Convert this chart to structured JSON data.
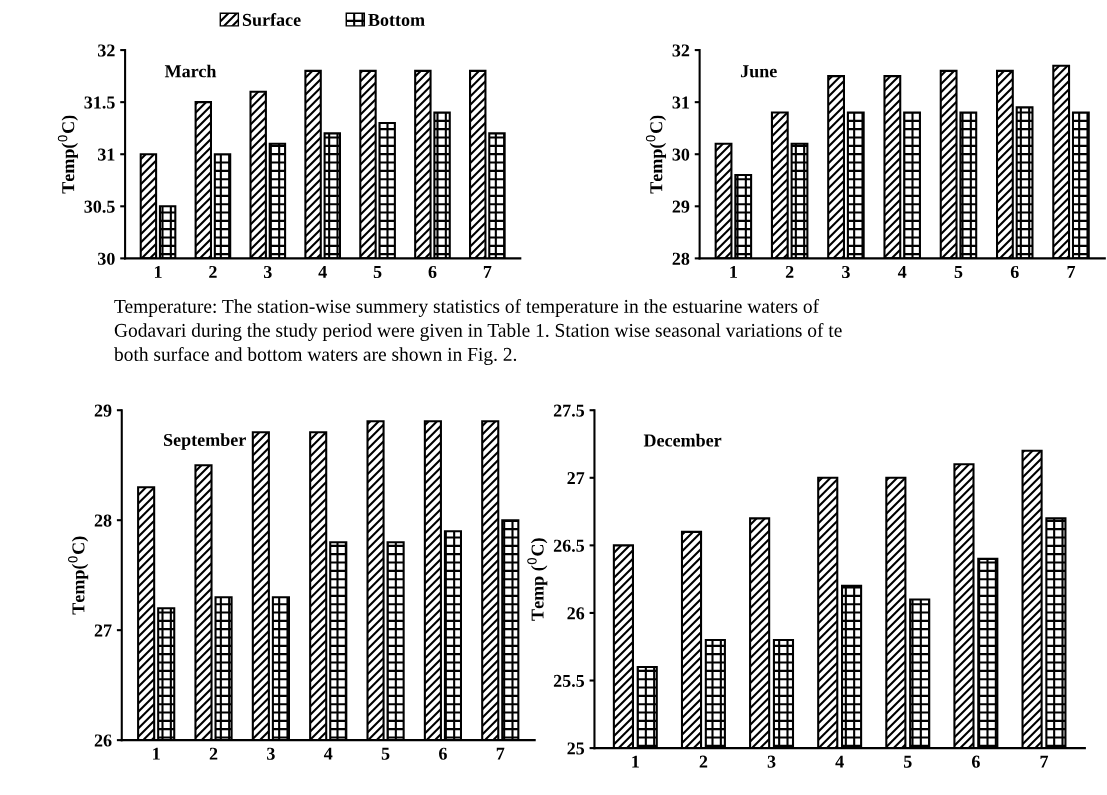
{
  "chart_data": [
    {
      "type": "bar",
      "title": "March",
      "ylabel": "Temp($^{0}$C)",
      "categories": [
        "1",
        "2",
        "3",
        "4",
        "5",
        "6",
        "7"
      ],
      "ylim": [
        30,
        32
      ],
      "yticks": [
        30,
        30.5,
        31,
        31.5,
        32
      ],
      "legend": "top",
      "grid": false,
      "series": [
        {
          "name": "Surface",
          "color": "#000000",
          "values": [
            31,
            31.5,
            31.6,
            31.8,
            31.8,
            31.8,
            31.8
          ]
        },
        {
          "name": "Bottom",
          "color": "#000000",
          "values": [
            30.5,
            31,
            31.1,
            31.2,
            31.3,
            31.4,
            31.2
          ]
        }
      ]
    },
    {
      "type": "bar",
      "title": "June",
      "ylabel": "Temp($^{0}$C)",
      "categories": [
        "1",
        "2",
        "3",
        "4",
        "5",
        "6",
        "7"
      ],
      "ylim": [
        28,
        32
      ],
      "yticks": [
        28,
        29,
        30,
        31,
        32
      ],
      "grid": false,
      "series": [
        {
          "color": "#000000",
          "values": [
            30.2,
            30.8,
            31.5,
            31.5,
            31.6,
            31.6,
            31.7
          ]
        },
        {
          "color": "#000000",
          "values": [
            29.6,
            30.2,
            30.8,
            30.8,
            30.8,
            30.9,
            30.8
          ]
        }
      ]
    },
    {
      "type": "other",
      "annotations": [
        "Temperature: The station-wise summery statistics of temperature in the estuarine waters of",
        "Godavari during the study period were given in Table 1. Station wise seasonal variations of te",
        "both surface and bottom waters are shown in Fig. 2."
      ]
    },
    {
      "type": "bar",
      "title": "September",
      "ylabel": "Temp($^{0}$C)",
      "categories": [
        "1",
        "2",
        "3",
        "4",
        "5",
        "6",
        "7"
      ],
      "ylim": [
        26,
        29
      ],
      "yticks": [
        26,
        27,
        28,
        29
      ],
      "grid": false,
      "series": [
        {
          "color": "#000000",
          "values": [
            28.3,
            28.5,
            28.8,
            28.8,
            28.9,
            28.9,
            28.9
          ]
        },
        {
          "color": "#000000",
          "values": [
            27.2,
            27.3,
            27.3,
            27.8,
            27.8,
            27.9,
            28.0
          ]
        }
      ]
    },
    {
      "type": "bar",
      "title": "December",
      "ylabel": "Temp ($^{0}$C)",
      "categories": [
        "1",
        "2",
        "3",
        "4",
        "5",
        "6",
        "7"
      ],
      "ylim": [
        25,
        27.5
      ],
      "yticks": [
        25,
        25.5,
        26,
        26.5,
        27,
        27.5
      ],
      "grid": false,
      "series": [
        {
          "color": "#000000",
          "values": [
            26.5,
            26.6,
            26.7,
            27.0,
            27.0,
            27.1,
            27.2
          ]
        },
        {
          "color": "#000000",
          "values": [
            25.6,
            25.8,
            25.8,
            26.2,
            26.1,
            26.4,
            26.7
          ]
        }
      ]
    }
  ]
}
